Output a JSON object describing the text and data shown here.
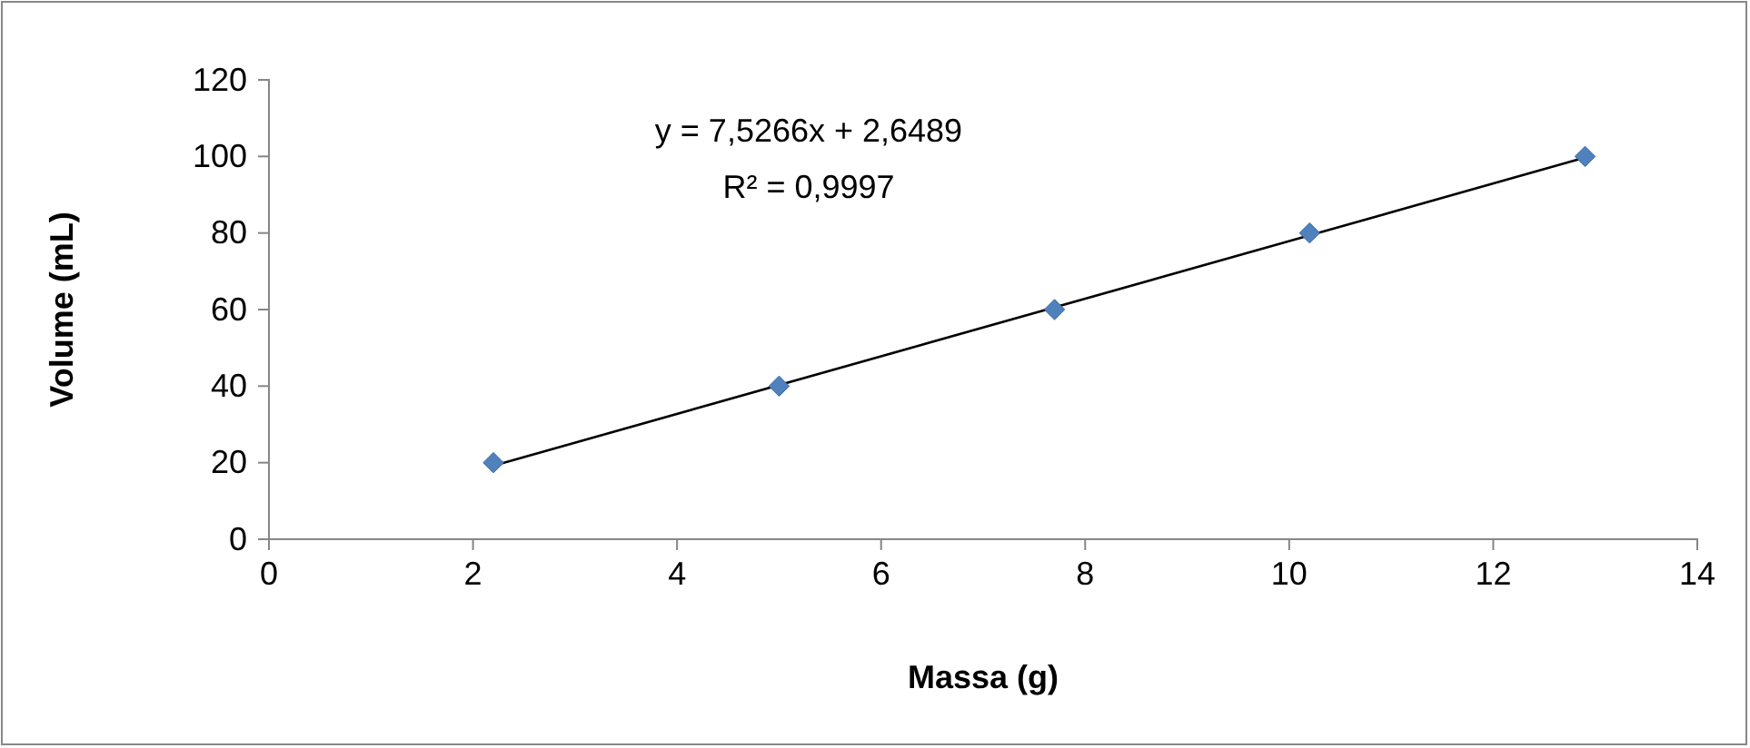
{
  "chart_data": {
    "type": "scatter",
    "xlabel": "Massa (g)",
    "ylabel": "Volume (mL)",
    "xlim": [
      0,
      14
    ],
    "xticks": [
      0,
      2,
      4,
      6,
      8,
      10,
      12,
      14
    ],
    "ylim": [
      0,
      120
    ],
    "yticks": [
      0,
      20,
      40,
      60,
      80,
      100,
      120
    ],
    "grid": false,
    "annotations": [
      "y = 7,5266x + 2,6489",
      "R² = 0,9997"
    ],
    "series": [
      {
        "marker": "diamond",
        "color": "#4f81bd",
        "x": [
          2.2,
          5.0,
          7.7,
          10.2,
          12.9
        ],
        "values": [
          20,
          40,
          60,
          80,
          100
        ]
      },
      {
        "type": "line",
        "marker": "none",
        "color": "#000000",
        "x": [
          2.2,
          12.9
        ],
        "values": [
          19.2,
          99.7
        ]
      }
    ]
  }
}
